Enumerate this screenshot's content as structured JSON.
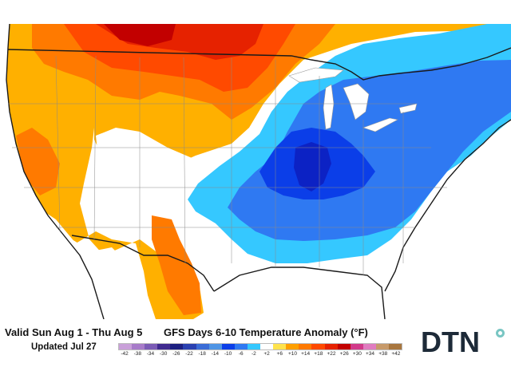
{
  "footer": {
    "valid_text": "Valid Sun Aug 1 - Thu Aug 5",
    "updated_text": "Updated Jul 27",
    "title": "GFS Days 6-10 Temperature Anomaly (°F)"
  },
  "legend": {
    "ticks": [
      "-42",
      "-38",
      "-34",
      "-30",
      "-26",
      "-22",
      "-18",
      "-14",
      "-10",
      "-6",
      "-2",
      "+2",
      "+6",
      "+10",
      "+14",
      "+18",
      "+22",
      "+26",
      "+30",
      "+34",
      "+38",
      "+42"
    ],
    "colors": [
      "#c9a0d9",
      "#a77bc9",
      "#7b5bb5",
      "#3f2a8f",
      "#1c1f80",
      "#2a40b0",
      "#3a6cd6",
      "#4f95e5",
      "#0b3ee8",
      "#2f79f2",
      "#35c8ff",
      "#ffffff",
      "#ffe34d",
      "#ffa000",
      "#ff7a00",
      "#ff4a00",
      "#e62200",
      "#c20000",
      "#d13a8a",
      "#e07cc0",
      "#c79a6a",
      "#a8763e"
    ]
  },
  "logo": {
    "text": "DTN"
  },
  "colors": {
    "water": "#ffffff",
    "land_neutral": "#ffffff",
    "cold_light": "#35c8ff",
    "cold_mid": "#2f79f2",
    "cold_deep": "#0b3ee8",
    "cold_core": "#0c22c4",
    "warm_light": "#ffb000",
    "warm_mid": "#ff7a00",
    "warm_deep": "#ff4a00",
    "warm_core": "#e62200",
    "hot_core": "#c20000"
  }
}
